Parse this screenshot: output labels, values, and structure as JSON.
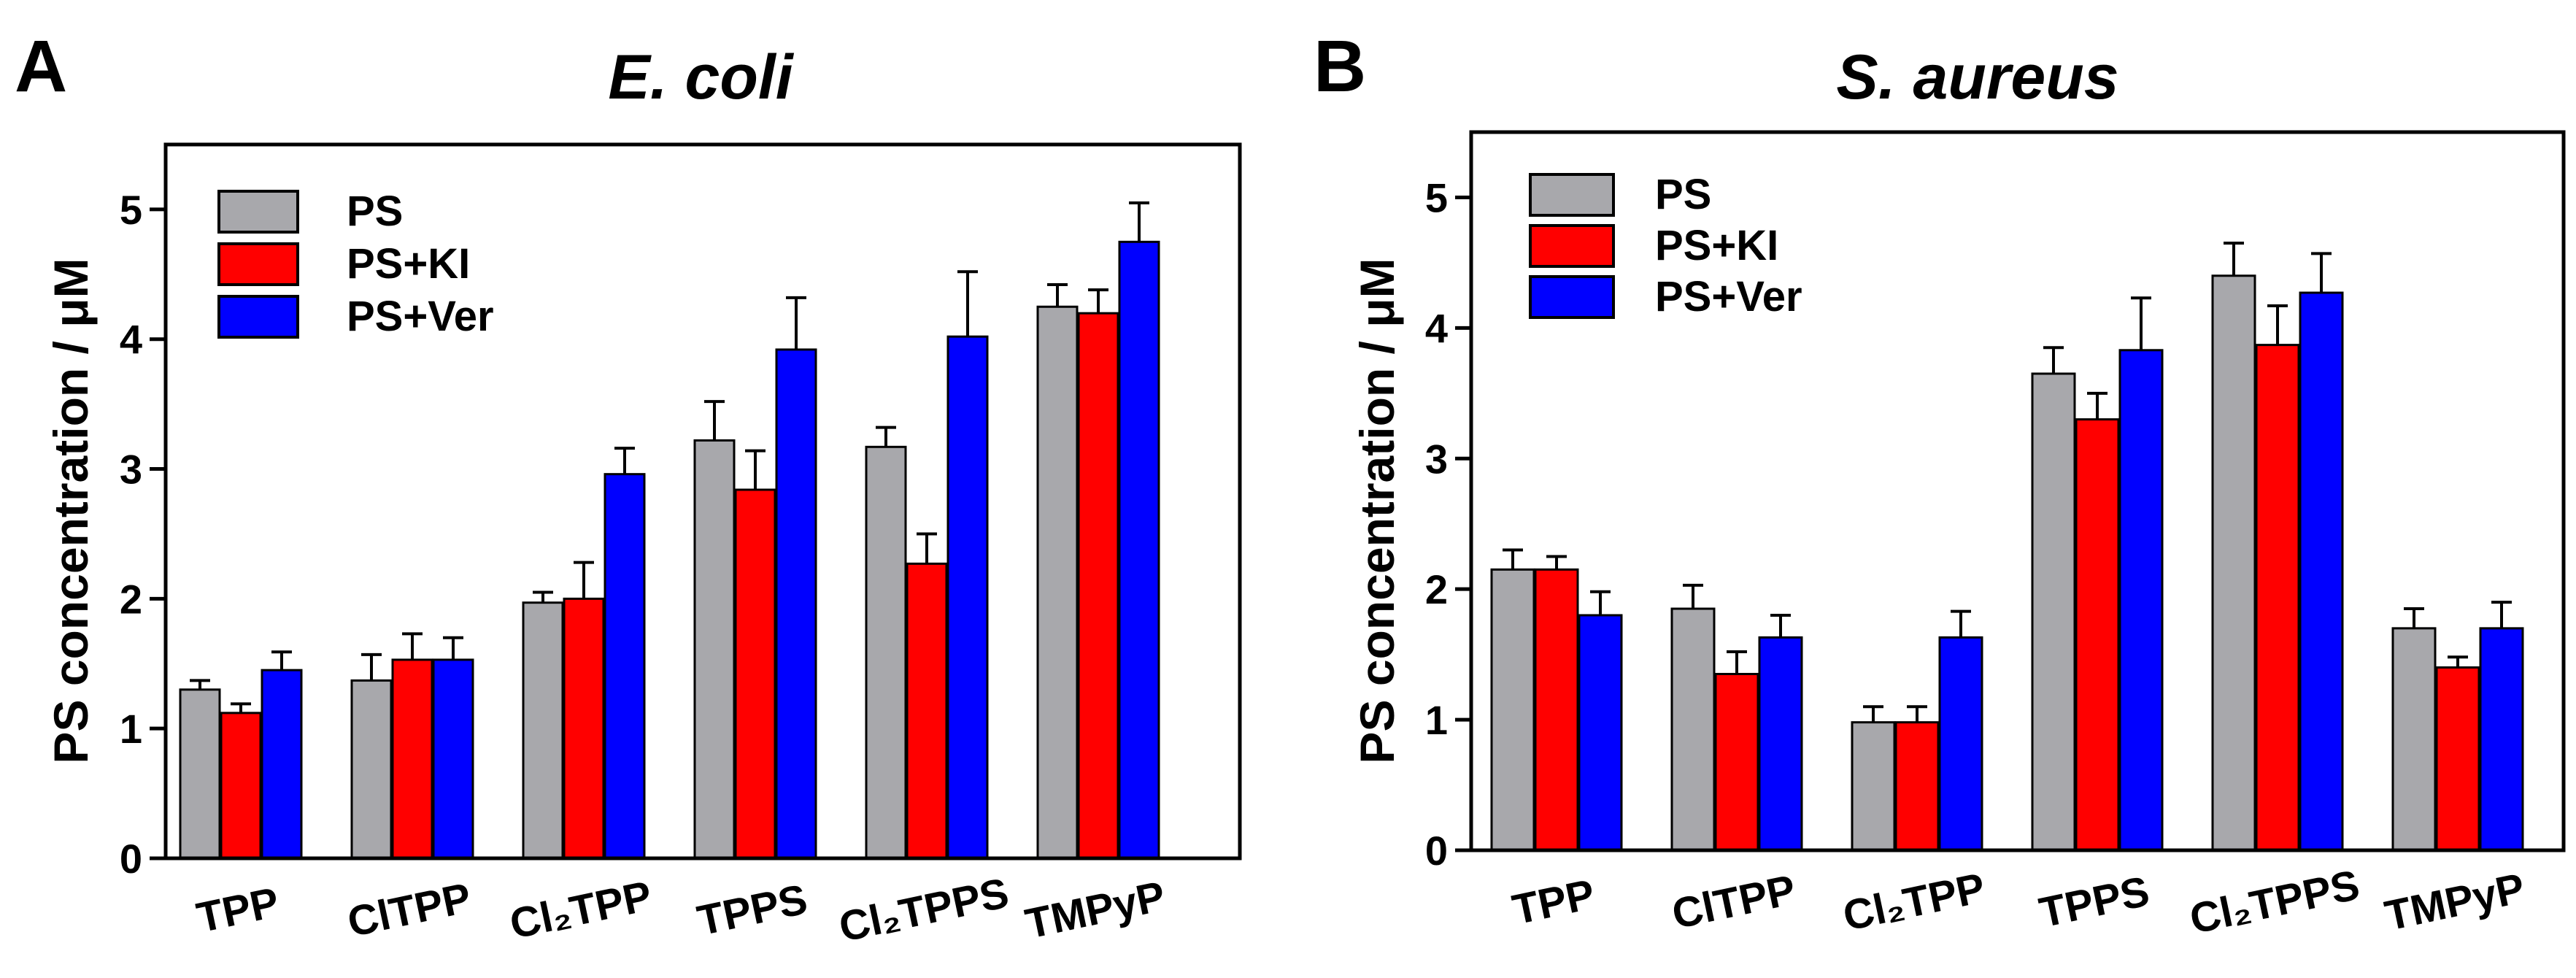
{
  "chart_data": [
    {
      "type": "bar",
      "panel": "A",
      "title": "E. coli",
      "xlabel": "",
      "ylabel": "PS concentration / μM",
      "ylim": [
        0,
        5.5
      ],
      "yticks": [
        0,
        1,
        2,
        3,
        4,
        5
      ],
      "grid": false,
      "legend_position": "top-left",
      "categories": [
        "TPP",
        "ClTPP",
        "Cl₂TPP",
        "TPPS",
        "Cl₂TPPS",
        "TMPyP"
      ],
      "series": [
        {
          "name": "PS",
          "color": "#a8a8ac",
          "values": [
            1.3,
            1.37,
            1.97,
            3.22,
            3.17,
            4.25
          ],
          "errors": [
            0.07,
            0.2,
            0.08,
            0.3,
            0.15,
            0.17
          ]
        },
        {
          "name": "PS+KI",
          "color": "#ff0000",
          "values": [
            1.12,
            1.53,
            2.0,
            2.84,
            2.27,
            4.2
          ],
          "errors": [
            0.07,
            0.2,
            0.28,
            0.3,
            0.23,
            0.18
          ]
        },
        {
          "name": "PS+Ver",
          "color": "#0000ff",
          "values": [
            1.45,
            1.53,
            2.96,
            3.92,
            4.02,
            4.75
          ],
          "errors": [
            0.14,
            0.17,
            0.2,
            0.4,
            0.5,
            0.3
          ]
        }
      ]
    },
    {
      "type": "bar",
      "panel": "B",
      "title": "S. aureus",
      "xlabel": "",
      "ylabel": "PS concentration / μM",
      "ylim": [
        0,
        5.5
      ],
      "yticks": [
        0,
        1,
        2,
        3,
        4,
        5
      ],
      "grid": false,
      "legend_position": "top-left",
      "categories": [
        "TPP",
        "ClTPP",
        "Cl₂TPP",
        "TPPS",
        "Cl₂TPPS",
        "TMPyP"
      ],
      "series": [
        {
          "name": "PS",
          "color": "#a8a8ac",
          "values": [
            2.15,
            1.85,
            0.98,
            3.65,
            4.4,
            1.7
          ],
          "errors": [
            0.15,
            0.18,
            0.12,
            0.2,
            0.25,
            0.15
          ]
        },
        {
          "name": "PS+KI",
          "color": "#ff0000",
          "values": [
            2.15,
            1.35,
            0.98,
            3.3,
            3.87,
            1.4
          ],
          "errors": [
            0.1,
            0.17,
            0.12,
            0.2,
            0.3,
            0.08
          ]
        },
        {
          "name": "PS+Ver",
          "color": "#0000ff",
          "values": [
            1.8,
            1.63,
            1.63,
            3.83,
            4.27,
            1.7
          ],
          "errors": [
            0.18,
            0.17,
            0.2,
            0.4,
            0.3,
            0.2
          ]
        }
      ]
    }
  ]
}
